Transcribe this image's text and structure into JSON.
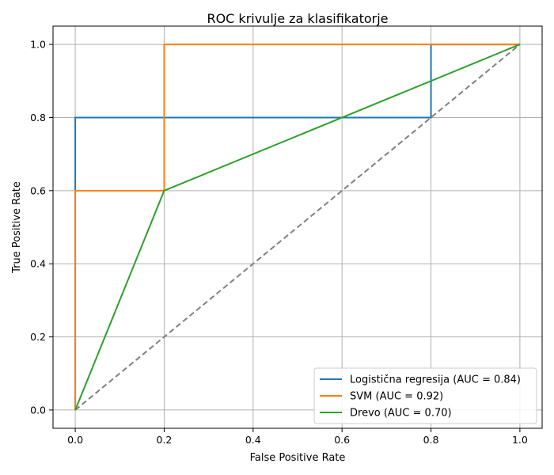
{
  "chart_data": {
    "type": "line",
    "title": "ROC krivulje za klasifikatorje",
    "xlabel": "False Positive Rate",
    "ylabel": "True Positive Rate",
    "xlim": [
      -0.05,
      1.05
    ],
    "ylim": [
      -0.05,
      1.05
    ],
    "xticks": [
      0.0,
      0.2,
      0.4,
      0.6,
      0.8,
      1.0
    ],
    "yticks": [
      0.0,
      0.2,
      0.4,
      0.6,
      0.8,
      1.0
    ],
    "xtick_labels": [
      "0.0",
      "0.2",
      "0.4",
      "0.6",
      "0.8",
      "1.0"
    ],
    "ytick_labels": [
      "0.0",
      "0.2",
      "0.4",
      "0.6",
      "0.8",
      "1.0"
    ],
    "grid": true,
    "legend_position": "lower-right",
    "series": [
      {
        "name": "Logistična regresija (AUC = 0.84)",
        "color": "#1f77b4",
        "x": [
          0.0,
          0.0,
          0.8,
          0.8,
          1.0
        ],
        "y": [
          0.0,
          0.8,
          0.8,
          1.0,
          1.0
        ]
      },
      {
        "name": "SVM (AUC = 0.92)",
        "color": "#ff7f0e",
        "x": [
          0.0,
          0.0,
          0.2,
          0.2,
          1.0
        ],
        "y": [
          0.0,
          0.6,
          0.6,
          1.0,
          1.0
        ]
      },
      {
        "name": "Drevo (AUC = 0.70)",
        "color": "#2ca02c",
        "x": [
          0.0,
          0.2,
          1.0
        ],
        "y": [
          0.0,
          0.6,
          1.0
        ]
      }
    ],
    "reference_line": {
      "color": "#808080",
      "dashed": true,
      "x": [
        0.0,
        1.0
      ],
      "y": [
        0.0,
        1.0
      ]
    }
  }
}
